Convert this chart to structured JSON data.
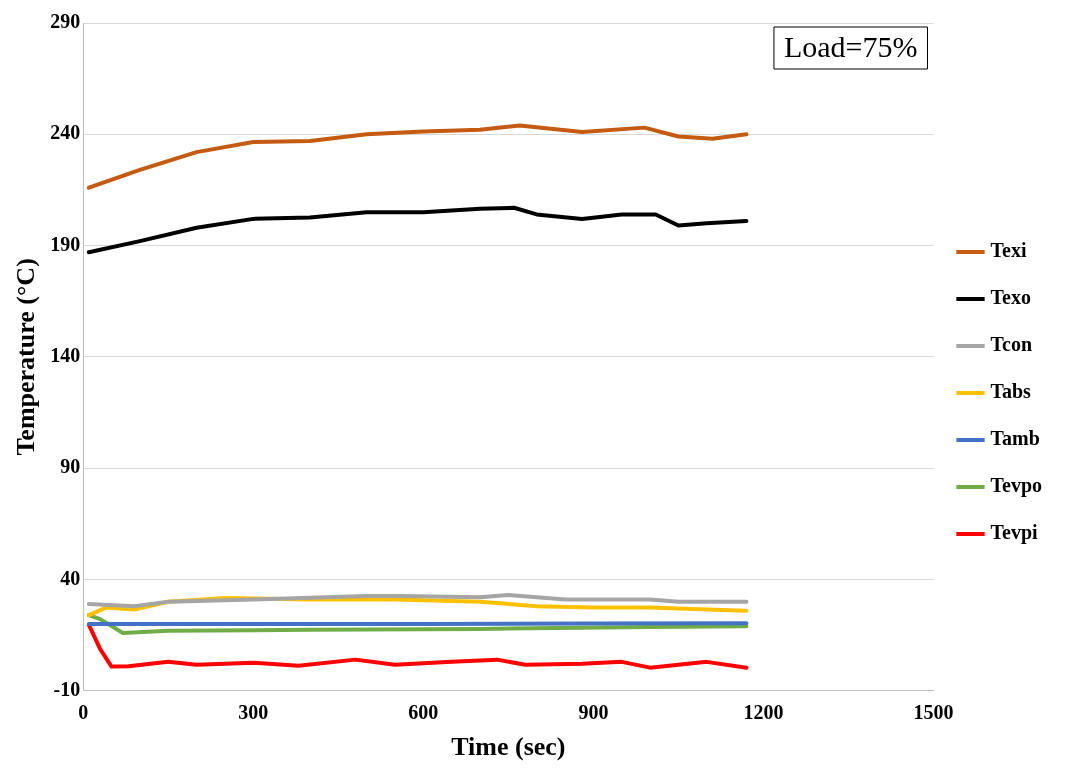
{
  "chart_data": {
    "type": "line",
    "xlabel": "Time (sec)",
    "ylabel": "Temperature (°C)",
    "xlim": [
      0,
      1500
    ],
    "xticks": [
      0,
      300,
      600,
      900,
      1200,
      1500
    ],
    "ylim": [
      -10,
      290
    ],
    "yticks": [
      -10,
      40,
      90,
      140,
      190,
      240,
      290
    ],
    "grid": "y",
    "legend": "right",
    "marker": "none",
    "line_style": "solid",
    "annotations": [
      "Load=75%"
    ],
    "series": [
      {
        "name": "Texi",
        "color": "#c55a11",
        "x": [
          10,
          100,
          200,
          300,
          400,
          500,
          600,
          700,
          770,
          880,
          990,
          1050,
          1110,
          1170
        ],
        "values": [
          216,
          224,
          232,
          236.5,
          237,
          240,
          241.3,
          242,
          244,
          241,
          243,
          239,
          238,
          240
        ]
      },
      {
        "name": "Texo",
        "color": "#000000",
        "x": [
          10,
          100,
          200,
          300,
          400,
          500,
          600,
          700,
          760,
          800,
          880,
          950,
          1010,
          1050,
          1100,
          1170
        ],
        "values": [
          187,
          192,
          198,
          202,
          202.6,
          205,
          205,
          206.5,
          207,
          204,
          202,
          204,
          204,
          199,
          200,
          201
        ]
      },
      {
        "name": "Tcon",
        "color": "#a5a5a5",
        "x": [
          10,
          90,
          150,
          300,
          500,
          560,
          700,
          750,
          850,
          1000,
          1050,
          1170
        ],
        "values": [
          29,
          28,
          30,
          31,
          32.6,
          32.6,
          32,
          33,
          31,
          31,
          30,
          30
        ]
      },
      {
        "name": "Tabs",
        "color": "#ffc000",
        "x": [
          10,
          40,
          90,
          150,
          250,
          400,
          550,
          700,
          800,
          900,
          1000,
          1100,
          1170
        ],
        "values": [
          24,
          27.4,
          26.5,
          30,
          31.7,
          31,
          31,
          30,
          28,
          27.4,
          27.4,
          26.5,
          26
        ]
      },
      {
        "name": "Tamb",
        "color": "#4472c4",
        "x": [
          10,
          300,
          600,
          900,
          1170
        ],
        "values": [
          20,
          20,
          20,
          20.2,
          20.4
        ]
      },
      {
        "name": "Tevpo",
        "color": "#70ad47",
        "x": [
          10,
          30,
          70,
          150,
          400,
          700,
          1000,
          1170
        ],
        "values": [
          24,
          22.2,
          16,
          17,
          17.4,
          17.8,
          18.7,
          19
        ]
      },
      {
        "name": "Tevpi",
        "color": "#ff0000",
        "x": [
          10,
          30,
          50,
          80,
          150,
          200,
          300,
          380,
          480,
          550,
          650,
          730,
          780,
          880,
          950,
          1000,
          1050,
          1100,
          1170
        ],
        "values": [
          19.6,
          8.7,
          0.9,
          1,
          3,
          1.7,
          2.6,
          1.3,
          4,
          1.7,
          3,
          4,
          1.7,
          2.2,
          3,
          0.4,
          1.7,
          3,
          0.4
        ]
      }
    ]
  }
}
